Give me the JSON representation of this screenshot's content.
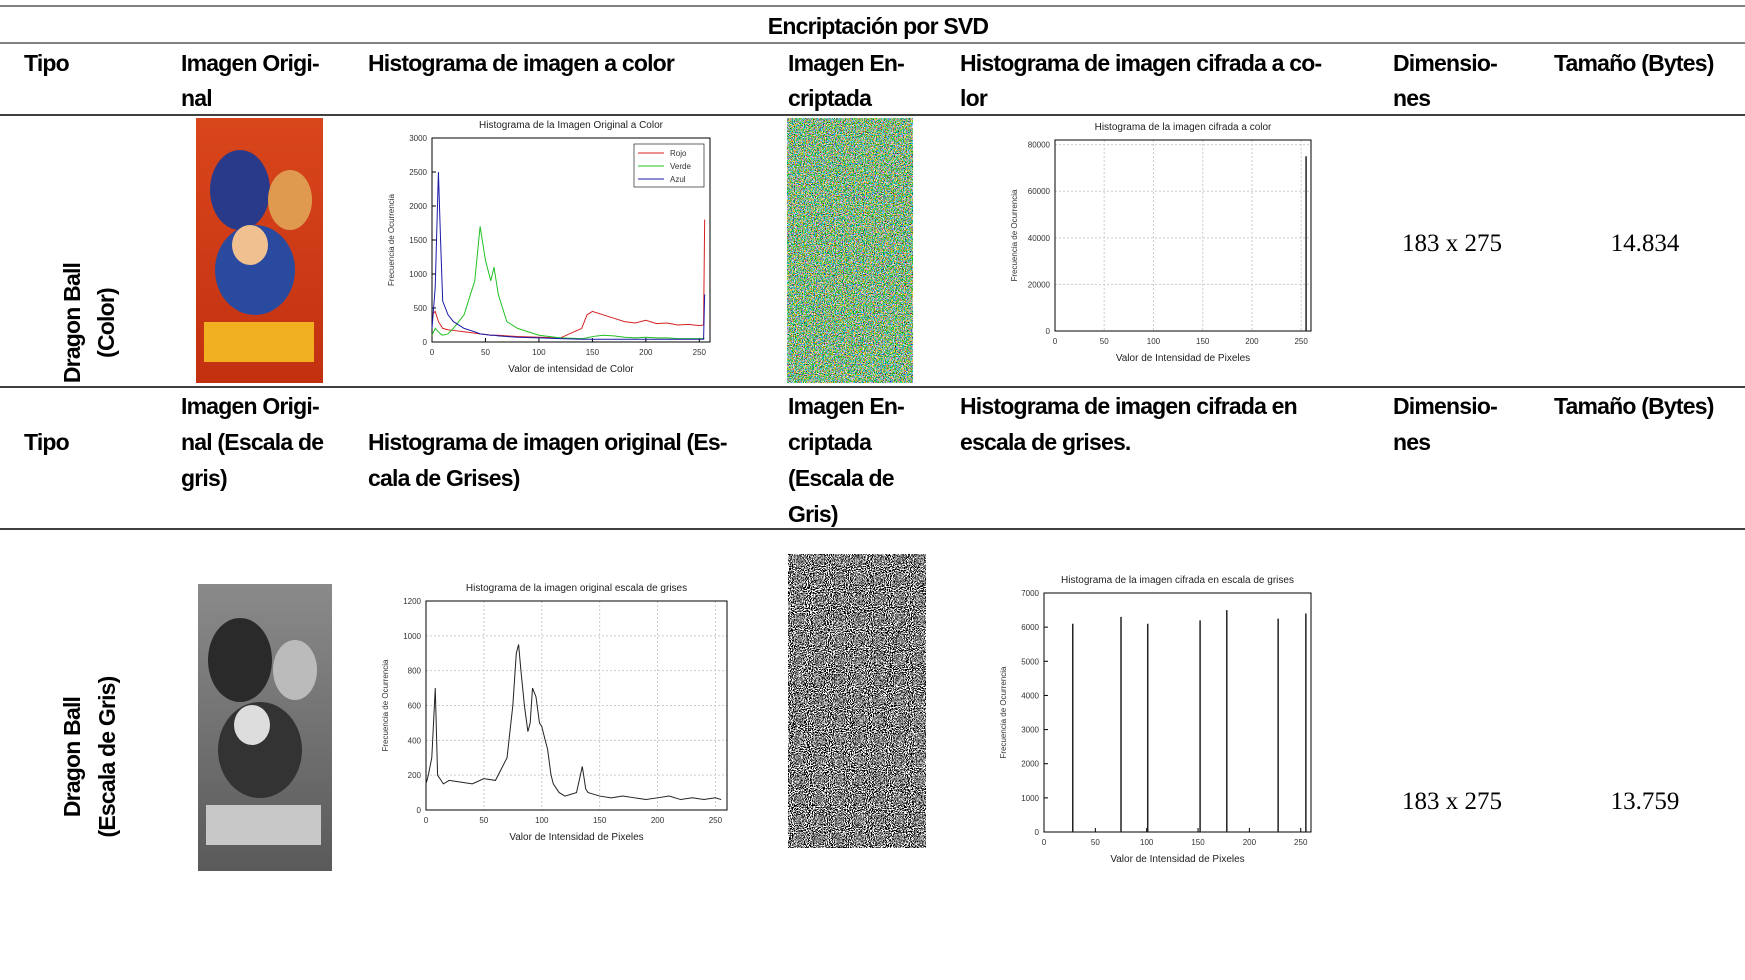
{
  "table": {
    "caption": "Encriptación por SVD",
    "header_1": [
      [
        "Tipo"
      ],
      [
        "Imagen Origi-",
        "nal"
      ],
      [
        "Histograma de imagen a color"
      ],
      [
        "Imagen En-",
        "criptada"
      ],
      [
        "Histograma de imagen cifrada a co-",
        "lor"
      ],
      [
        "Dimensio-",
        "nes"
      ],
      [
        "Tamaño (Bytes)"
      ]
    ],
    "row_1": {
      "tipo": [
        "Dragon Ball",
        "(Color)"
      ],
      "dimensiones": "183 x 275",
      "tamano": "14.834"
    },
    "header_2": [
      [
        "Tipo"
      ],
      [
        "Imagen Origi-",
        "nal (Escala de",
        "gris)"
      ],
      [
        "Histograma de imagen original (Es-",
        "cala de Grises)"
      ],
      [
        "Imagen En-",
        "criptada",
        "(Escala de",
        "Gris)"
      ],
      [
        "Histograma de imagen cifrada en",
        "escala de grises."
      ],
      [
        "Dimensio-",
        "nes"
      ],
      [
        "Tamaño (Bytes)"
      ]
    ],
    "row_2": {
      "tipo": [
        "Dragon Ball",
        "(Escala de Gris)"
      ],
      "dimensiones": "183 x 275",
      "tamano": "13.759"
    }
  },
  "histograms": [
    {
      "type": "line",
      "title": "Histograma de la Imagen Original a Color",
      "x_label": "Valor de intensidad de Color",
      "y_label": "Frecuencia de Ocurrencia",
      "xlim": [
        0,
        260
      ],
      "ylim": [
        0,
        3000
      ],
      "xticks": [
        0,
        50,
        100,
        150,
        200,
        250
      ],
      "yticks": [
        0,
        500,
        1000,
        1500,
        2000,
        2500,
        3000
      ],
      "grid": false,
      "legend": "upper right",
      "x": [
        0,
        3,
        6,
        8,
        10,
        15,
        20,
        30,
        40,
        45,
        50,
        55,
        58,
        62,
        70,
        80,
        100,
        120,
        140,
        145,
        150,
        160,
        170,
        180,
        190,
        200,
        210,
        220,
        230,
        240,
        250,
        254,
        255
      ],
      "series": [
        {
          "name": "Rojo",
          "color": "#d62020",
          "values": [
            400,
            450,
            300,
            250,
            200,
            180,
            170,
            150,
            130,
            120,
            110,
            100,
            100,
            100,
            90,
            80,
            70,
            60,
            200,
            400,
            450,
            400,
            350,
            300,
            280,
            320,
            270,
            280,
            250,
            260,
            240,
            250,
            1800
          ]
        },
        {
          "name": "Verde",
          "color": "#22c022",
          "values": [
            100,
            200,
            150,
            120,
            100,
            120,
            200,
            400,
            900,
            1700,
            1200,
            900,
            1100,
            700,
            300,
            200,
            100,
            60,
            50,
            60,
            80,
            100,
            90,
            70,
            60,
            70,
            60,
            60,
            50,
            50,
            50,
            50,
            50
          ]
        },
        {
          "name": "Azul",
          "color": "#1a1aa8",
          "values": [
            200,
            800,
            2500,
            1500,
            600,
            400,
            300,
            200,
            150,
            120,
            110,
            100,
            100,
            90,
            80,
            70,
            60,
            50,
            40,
            40,
            40,
            40,
            40,
            40,
            40,
            40,
            40,
            40,
            40,
            40,
            40,
            40,
            700
          ]
        }
      ]
    },
    {
      "type": "spike",
      "title": "Histograma de la imagen cifrada a color",
      "x_label": "Valor de Intensidad de Pixeles",
      "y_label": "Frecuencia de Ocurrencia",
      "xlim": [
        0,
        260
      ],
      "ylim": [
        0,
        82000
      ],
      "xticks": [
        0,
        50,
        100,
        150,
        200,
        250
      ],
      "yticks": [
        0,
        20000,
        40000,
        60000,
        80000
      ],
      "grid": true,
      "color": "#222222",
      "x": [
        255
      ],
      "values": [
        75000
      ]
    },
    {
      "type": "line",
      "title": "Histograma de la imagen original escala de grises",
      "x_label": "Valor de Intensidad de Pixeles",
      "y_label": "Frecuencia de Ocurrencia",
      "xlim": [
        0,
        260
      ],
      "ylim": [
        0,
        1200
      ],
      "xticks": [
        0,
        50,
        100,
        150,
        200,
        250
      ],
      "yticks": [
        0,
        200,
        400,
        600,
        800,
        1000,
        1200
      ],
      "grid": true,
      "x": [
        0,
        2,
        5,
        8,
        10,
        12,
        15,
        20,
        30,
        40,
        50,
        60,
        70,
        75,
        78,
        80,
        82,
        85,
        88,
        90,
        92,
        95,
        98,
        100,
        103,
        105,
        108,
        110,
        115,
        120,
        130,
        135,
        138,
        140,
        145,
        150,
        160,
        170,
        180,
        190,
        200,
        210,
        220,
        230,
        240,
        250,
        255
      ],
      "series": [
        {
          "color": "#222222",
          "values": [
            150,
            200,
            300,
            700,
            200,
            180,
            150,
            170,
            160,
            150,
            180,
            170,
            300,
            600,
            900,
            950,
            800,
            600,
            450,
            500,
            700,
            650,
            500,
            480,
            400,
            350,
            200,
            150,
            100,
            80,
            100,
            250,
            120,
            100,
            90,
            80,
            70,
            80,
            70,
            60,
            70,
            80,
            60,
            70,
            60,
            70,
            60
          ]
        }
      ]
    },
    {
      "type": "spike",
      "title": "Histograma de la imagen cifrada en escala de grises",
      "x_label": "Valor de Intensidad de Pixeles",
      "y_label": "Frecuencia de Ocurrencia",
      "xlim": [
        0,
        260
      ],
      "ylim": [
        0,
        7000
      ],
      "xticks": [
        0,
        50,
        100,
        150,
        200,
        250
      ],
      "yticks": [
        0,
        1000,
        2000,
        3000,
        4000,
        5000,
        6000,
        7000
      ],
      "grid": false,
      "color": "#222222",
      "x": [
        28,
        75,
        101,
        152,
        178,
        228,
        255
      ],
      "values": [
        6100,
        6300,
        6100,
        6200,
        6500,
        6250,
        6400
      ]
    }
  ]
}
